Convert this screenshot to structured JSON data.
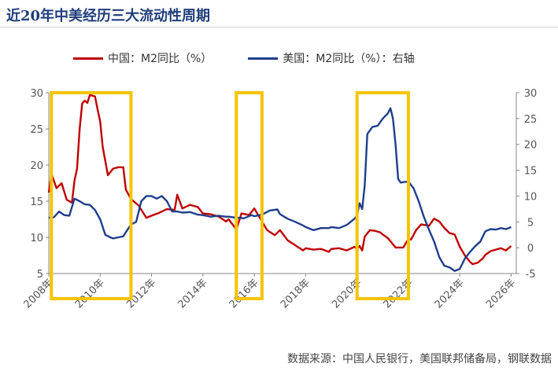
{
  "title": "近20年中美经历三大流动性周期",
  "source": "数据来源：中国人民银行，美国联邦储备局，钢联数据",
  "colors": {
    "china": "#c00000",
    "us": "#1f3e8c",
    "highlight": "#f5c400"
  },
  "chart_data": {
    "type": "line",
    "left_axis": {
      "ylim": [
        5,
        30
      ],
      "ticks": [
        "5",
        "10",
        "15",
        "20",
        "25",
        "30"
      ]
    },
    "right_axis": {
      "ylim": [
        -5,
        30
      ],
      "ticks": [
        "-5",
        "0",
        "5",
        "10",
        "15",
        "20",
        "25",
        "30"
      ]
    },
    "x_axis": {
      "xlim": [
        2008,
        2026.2
      ],
      "ticks": [
        2008,
        2010,
        2012,
        2014,
        2016,
        2018,
        2020,
        2022,
        2024,
        2026
      ],
      "tick_labels": [
        "2008年",
        "2010年",
        "2012年",
        "2014年",
        "2016年",
        "2018年",
        "2020年",
        "2022年",
        "2024年",
        "2026年"
      ]
    },
    "series": [
      {
        "name": "中国：M2同比（%）",
        "axis": "left",
        "x": [
          2008.0,
          2008.1,
          2008.3,
          2008.5,
          2008.7,
          2008.9,
          2009.0,
          2009.1,
          2009.2,
          2009.3,
          2009.4,
          2009.5,
          2009.6,
          2009.8,
          2009.9,
          2010.0,
          2010.1,
          2010.3,
          2010.5,
          2010.7,
          2010.9,
          2011.0,
          2011.2,
          2011.5,
          2011.8,
          2012.0,
          2012.3,
          2012.6,
          2012.9,
          2013.0,
          2013.2,
          2013.5,
          2013.8,
          2014.0,
          2014.3,
          2014.6,
          2014.9,
          2015.0,
          2015.3,
          2015.5,
          2015.8,
          2016.0,
          2016.2,
          2016.5,
          2016.8,
          2017.0,
          2017.3,
          2017.6,
          2017.9,
          2018.0,
          2018.3,
          2018.6,
          2018.9,
          2019.0,
          2019.3,
          2019.6,
          2019.9,
          2020.0,
          2020.1,
          2020.2,
          2020.3,
          2020.5,
          2020.7,
          2020.9,
          2021.0,
          2021.2,
          2021.5,
          2021.8,
          2022.0,
          2022.1,
          2022.3,
          2022.5,
          2022.8,
          2023.0,
          2023.2,
          2023.4,
          2023.6,
          2023.8,
          2024.0,
          2024.2,
          2024.4,
          2024.5,
          2024.7,
          2024.9,
          2025.0,
          2025.2,
          2025.4,
          2025.6,
          2025.8,
          2026.0
        ],
        "values": [
          16.2,
          18.8,
          16.8,
          17.5,
          15.2,
          14.8,
          17.8,
          19.5,
          25.0,
          28.5,
          28.9,
          28.6,
          29.7,
          29.5,
          27.7,
          26.0,
          22.5,
          18.6,
          19.5,
          19.7,
          19.7,
          16.6,
          15.3,
          14.4,
          12.7,
          13.0,
          13.4,
          13.9,
          13.8,
          15.9,
          14.0,
          14.5,
          14.2,
          13.3,
          13.2,
          12.9,
          12.2,
          12.5,
          11.1,
          13.3,
          13.1,
          14.0,
          12.8,
          11.0,
          10.3,
          11.0,
          9.6,
          8.9,
          8.2,
          8.5,
          8.3,
          8.4,
          8.0,
          8.4,
          8.5,
          8.2,
          8.7,
          8.4,
          8.8,
          8.2,
          10.1,
          11.0,
          10.9,
          10.7,
          10.4,
          9.9,
          8.6,
          8.6,
          9.8,
          9.7,
          11.0,
          11.8,
          11.6,
          12.6,
          12.2,
          11.3,
          10.6,
          10.4,
          8.7,
          7.5,
          6.6,
          6.3,
          6.5,
          7.1,
          7.6,
          8.1,
          8.3,
          8.5,
          8.2,
          8.8
        ]
      },
      {
        "name": "美国：M2同比（%）：右轴",
        "axis": "right",
        "x": [
          2008.0,
          2008.2,
          2008.4,
          2008.6,
          2008.8,
          2009.0,
          2009.2,
          2009.4,
          2009.6,
          2009.8,
          2010.0,
          2010.2,
          2010.4,
          2010.5,
          2010.7,
          2010.9,
          2011.0,
          2011.2,
          2011.4,
          2011.6,
          2011.8,
          2012.0,
          2012.2,
          2012.4,
          2012.6,
          2012.8,
          2013.0,
          2013.2,
          2013.5,
          2013.8,
          2014.0,
          2014.3,
          2014.6,
          2014.9,
          2015.0,
          2015.3,
          2015.6,
          2015.9,
          2016.0,
          2016.3,
          2016.6,
          2016.9,
          2017.0,
          2017.3,
          2017.6,
          2017.9,
          2018.0,
          2018.3,
          2018.6,
          2018.9,
          2019.0,
          2019.3,
          2019.6,
          2019.9,
          2020.0,
          2020.1,
          2020.2,
          2020.3,
          2020.4,
          2020.6,
          2020.8,
          2021.0,
          2021.1,
          2021.2,
          2021.3,
          2021.4,
          2021.5,
          2021.6,
          2021.7,
          2021.8,
          2022.0,
          2022.2,
          2022.4,
          2022.6,
          2022.8,
          2023.0,
          2023.2,
          2023.4,
          2023.6,
          2023.8,
          2024.0,
          2024.2,
          2024.4,
          2024.6,
          2024.8,
          2025.0,
          2025.2,
          2025.4,
          2025.6,
          2025.8,
          2026.0
        ],
        "values": [
          5.8,
          5.9,
          7.0,
          6.3,
          6.2,
          9.5,
          9.0,
          8.4,
          8.3,
          7.3,
          5.5,
          2.5,
          2.0,
          1.8,
          2.0,
          2.2,
          3.0,
          4.5,
          5.0,
          9.0,
          10.0,
          10.0,
          9.5,
          10.0,
          9.0,
          7.0,
          7.0,
          6.8,
          6.9,
          6.4,
          6.3,
          6.0,
          6.2,
          6.0,
          6.0,
          5.8,
          5.7,
          6.3,
          6.1,
          6.4,
          7.2,
          7.4,
          6.5,
          5.6,
          5.0,
          4.3,
          4.0,
          3.4,
          3.8,
          3.8,
          4.0,
          3.8,
          4.4,
          5.6,
          6.2,
          8.6,
          7.5,
          12.0,
          22.0,
          23.4,
          23.6,
          25.0,
          25.5,
          26.0,
          27.0,
          25.0,
          20.0,
          13.3,
          12.6,
          12.7,
          12.8,
          11.5,
          9.0,
          6.0,
          3.5,
          1.2,
          -1.8,
          -3.5,
          -3.8,
          -4.5,
          -4.1,
          -2.1,
          -0.8,
          0.3,
          1.2,
          3.2,
          3.6,
          3.5,
          3.8,
          3.6,
          4.0
        ]
      }
    ],
    "highlights": [
      {
        "x_start": 2008.1,
        "x_end": 2011.2
      },
      {
        "x_start": 2015.3,
        "x_end": 2016.3
      },
      {
        "x_start": 2020.0,
        "x_end": 2022.0
      }
    ],
    "grid": false,
    "legend_position": "top"
  }
}
